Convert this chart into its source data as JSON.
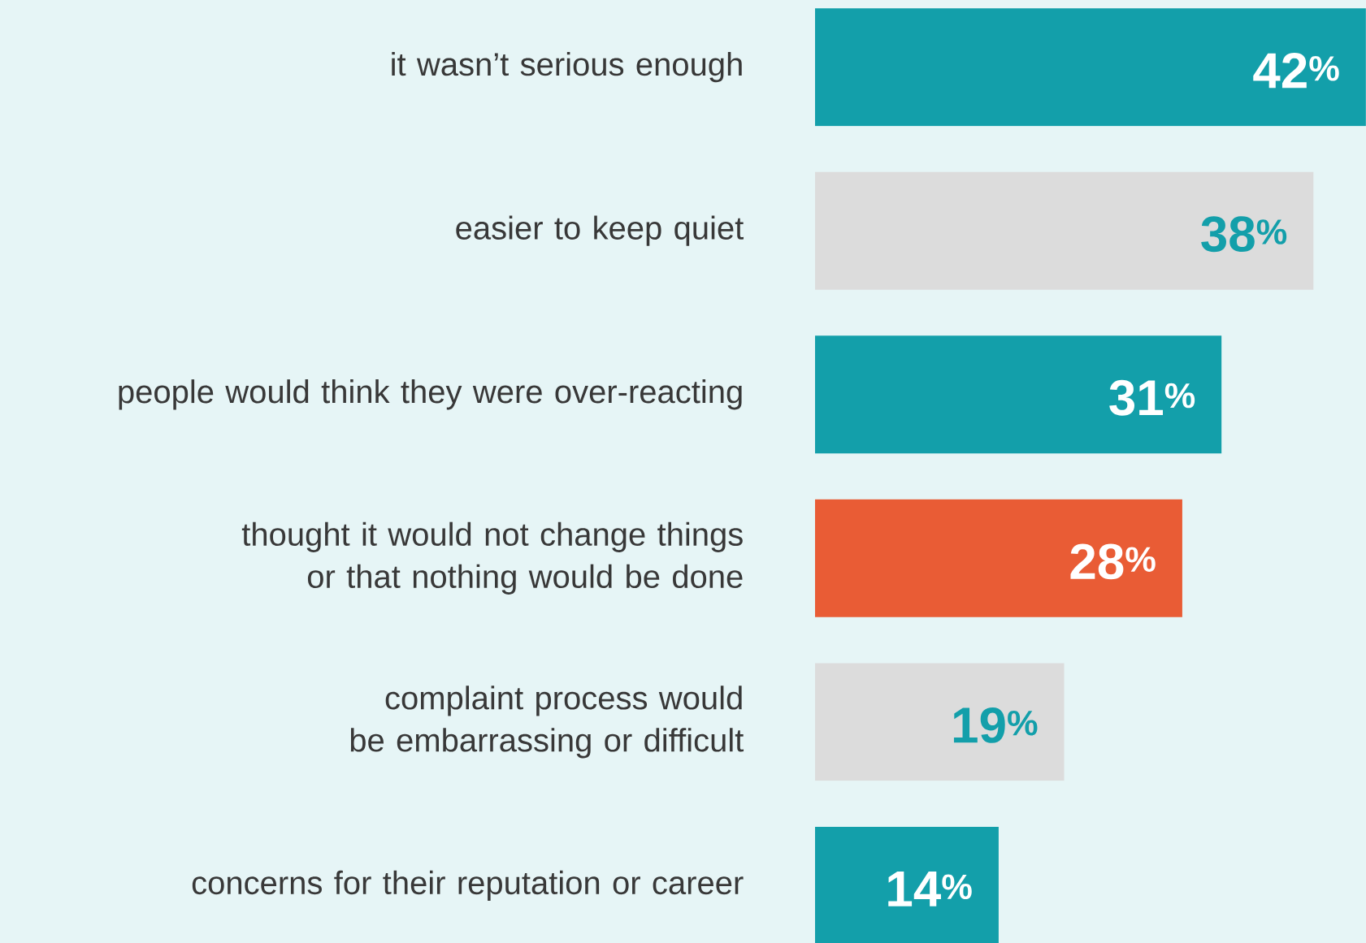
{
  "chart_data": {
    "type": "bar",
    "orientation": "horizontal",
    "categories": [
      "it wasn’t serious enough",
      "easier to keep quiet",
      "people would think they were over-reacting",
      "thought it would not change things or that nothing would be done",
      "complaint process would be embarrassing or difficult",
      "concerns for their reputation or career"
    ],
    "values": [
      42,
      38,
      31,
      28,
      19,
      14
    ],
    "colors": [
      "#139faa",
      "#dcdcdc",
      "#139faa",
      "#e95c35",
      "#dcdcdc",
      "#139faa"
    ],
    "value_labels": [
      "42$^{%}$",
      "38$^{%}$",
      "31$^{%}$",
      "28$^{%}$",
      "19$^{%}$",
      "14$^{%}$"
    ],
    "xlim": [
      0,
      42
    ]
  }
}
